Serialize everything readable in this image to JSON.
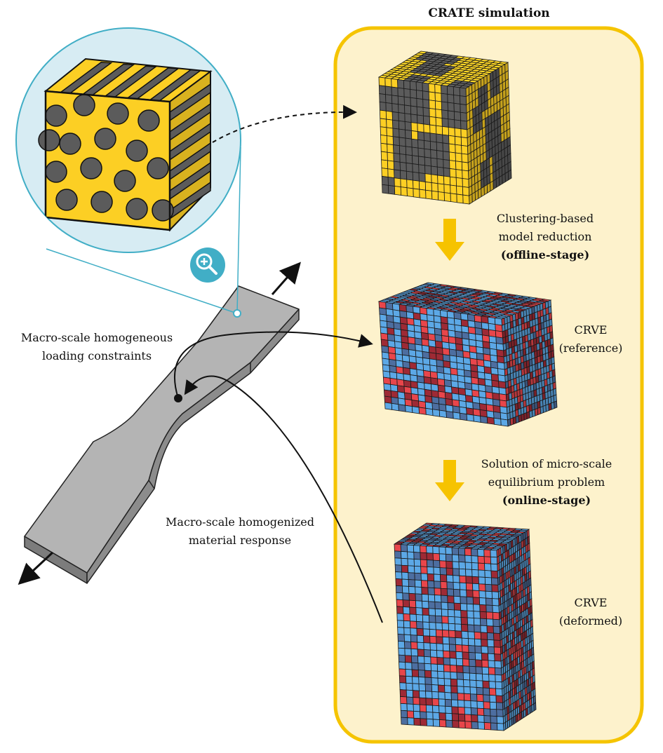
{
  "colors": {
    "panel_fill": "#fdf2cc",
    "panel_border": "#f5c400",
    "yellow": "#fccf24",
    "dark_gray": "#5b5b5b",
    "light_blue": "#d7ecf3",
    "teal": "#41aec6",
    "specimen_gray": "#b4b4b4",
    "cluster_blue": "#5ca8e6",
    "cluster_red": "#e8464b",
    "cluster_dark_red": "#9e2a35",
    "cluster_slate": "#4d6ea0",
    "arrow_yellow": "#f6c300"
  },
  "panel": {
    "title": "CRATE simulation"
  },
  "steps": {
    "clustering": {
      "line1": "Clustering-based",
      "line2": "model reduction",
      "line3": "(offline-stage)"
    },
    "online": {
      "line1": "Solution of micro-scale",
      "line2": "equilibrium problem",
      "line3": "(online-stage)"
    }
  },
  "crve_reference": {
    "line1": "CRVE",
    "line2": "(reference)"
  },
  "crve_deformed": {
    "line1": "CRVE",
    "line2": "(deformed)"
  },
  "macro": {
    "loading": {
      "line1": "Macro-scale homogeneous",
      "line2": "loading constraints"
    },
    "response": {
      "line1": "Macro-scale homogenized",
      "line2": "material response"
    }
  },
  "icons": {
    "zoom": "zoom-in-icon",
    "cube_rve": "rve-cube-icon",
    "voxel_cube": "voxel-cube-icon"
  }
}
